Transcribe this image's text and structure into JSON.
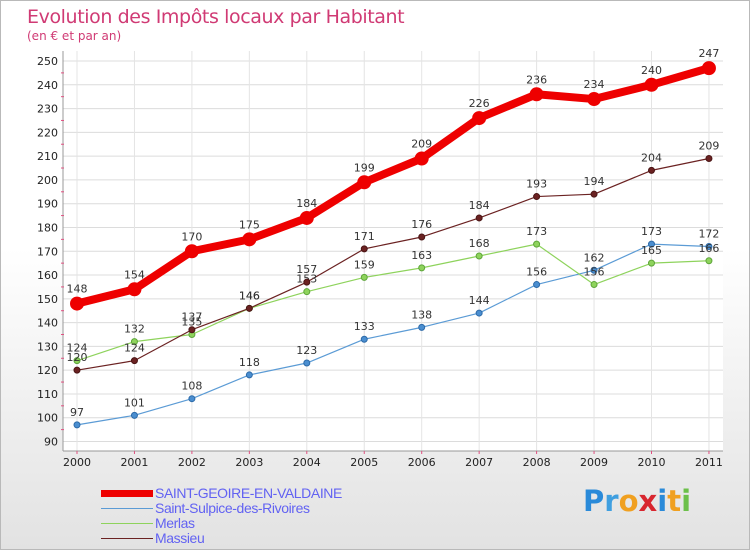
{
  "header": {
    "title": "Evolution des Impôts locaux par Habitant",
    "subtitle": "(en € et par an)"
  },
  "logo": {
    "text": "Proxiti",
    "letters": [
      "P",
      "r",
      "o",
      "x",
      "i",
      "t",
      "i"
    ],
    "colors": [
      "#2a8ad9",
      "#3f9fe0",
      "#f0a020",
      "#d8262f",
      "#2a8ad9",
      "#f0a020",
      "#6cc04a"
    ]
  },
  "chart_data": {
    "type": "line",
    "title": "Evolution des Impôts locaux par Habitant",
    "subtitle": "(en € et par an)",
    "x": [
      "2000",
      "2001",
      "2002",
      "2003",
      "2004",
      "2005",
      "2006",
      "2007",
      "2008",
      "2009",
      "2010",
      "2011"
    ],
    "ylim": [
      90,
      250
    ],
    "yticks": [
      90,
      100,
      110,
      120,
      130,
      140,
      150,
      160,
      170,
      180,
      190,
      200,
      210,
      220,
      230,
      240,
      250
    ],
    "grid": true,
    "legend": "bottom",
    "series": [
      {
        "name": "SAINT-GEOIRE-EN-VALDAINE",
        "color": "#ee0000",
        "values": [
          148,
          154,
          170,
          175,
          184,
          199,
          209,
          226,
          236,
          234,
          240,
          247
        ]
      },
      {
        "name": "Saint-Sulpice-des-Rivoires",
        "color": "#5b9bd5",
        "values": [
          97,
          101,
          108,
          118,
          123,
          133,
          138,
          144,
          156,
          162,
          173,
          172
        ]
      },
      {
        "name": "Merlas",
        "color": "#8ed35c",
        "values": [
          124,
          132,
          135,
          146,
          153,
          159,
          163,
          168,
          173,
          156,
          165,
          166
        ]
      },
      {
        "name": "Massieu",
        "color": "#6b2222",
        "values": [
          120,
          124,
          137,
          146,
          157,
          171,
          176,
          184,
          193,
          194,
          204,
          209
        ]
      }
    ]
  }
}
